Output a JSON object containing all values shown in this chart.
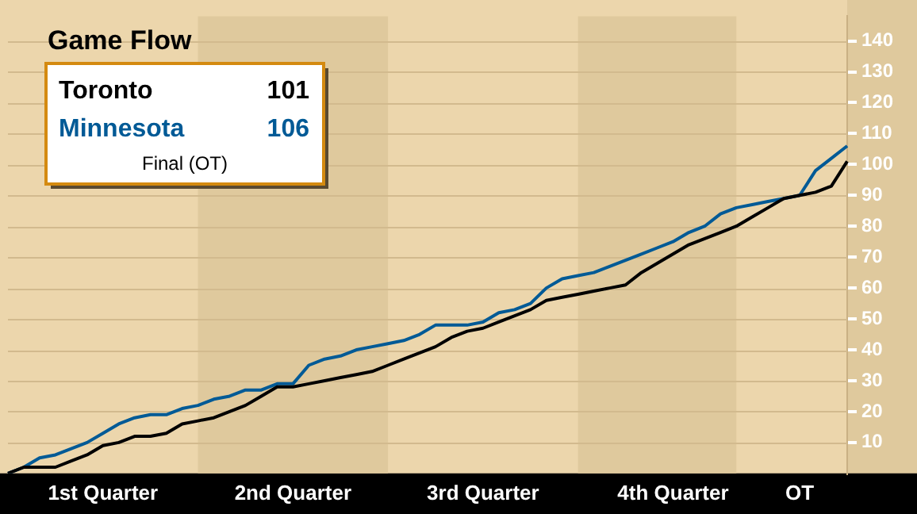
{
  "chart_data": {
    "type": "line",
    "title": "Game Flow",
    "annotations": [
      "101",
      "106",
      "Final (OT)"
    ],
    "categories": [
      null,
      null,
      null,
      null,
      null,
      null,
      "1st Quarter",
      null,
      null,
      null,
      null,
      null,
      null,
      null,
      null,
      null,
      null,
      null,
      "2nd Quarter",
      null,
      null,
      null,
      null,
      null,
      null,
      null,
      null,
      null,
      null,
      null,
      "3rd Quarter",
      null,
      null,
      null,
      null,
      null,
      null,
      null,
      null,
      null,
      null,
      null,
      "4th Quarter",
      null,
      null,
      null,
      null,
      null,
      null,
      null,
      "OT",
      null,
      null,
      null
    ],
    "ylim": [
      0,
      148
    ],
    "yticks": [
      10,
      20,
      30,
      40,
      50,
      60,
      70,
      80,
      90,
      100,
      110,
      120,
      130,
      140
    ],
    "grid": "y",
    "legend": "top left",
    "marker": "none",
    "line_style": "solid",
    "series": [
      {
        "name": "Toronto",
        "color": "#000000",
        "values": [
          0,
          2,
          2,
          2,
          4,
          6,
          9,
          10,
          12,
          12,
          13,
          16,
          17,
          18,
          20,
          22,
          25,
          28,
          28,
          29,
          30,
          31,
          32,
          33,
          35,
          37,
          39,
          41,
          44,
          46,
          47,
          49,
          51,
          53,
          56,
          57,
          58,
          59,
          60,
          61,
          65,
          68,
          71,
          74,
          76,
          78,
          80,
          83,
          86,
          89,
          90,
          91,
          93,
          101
        ]
      },
      {
        "name": "Minnesota",
        "color": "#005a96",
        "values": [
          0,
          2,
          5,
          6,
          8,
          10,
          13,
          16,
          18,
          19,
          19,
          21,
          22,
          24,
          25,
          27,
          27,
          29,
          29,
          35,
          37,
          38,
          40,
          41,
          42,
          43,
          45,
          48,
          48,
          48,
          49,
          52,
          53,
          55,
          60,
          63,
          64,
          65,
          67,
          69,
          71,
          73,
          75,
          78,
          80,
          84,
          86,
          87,
          88,
          89,
          90,
          98,
          102,
          106
        ]
      }
    ]
  }
}
